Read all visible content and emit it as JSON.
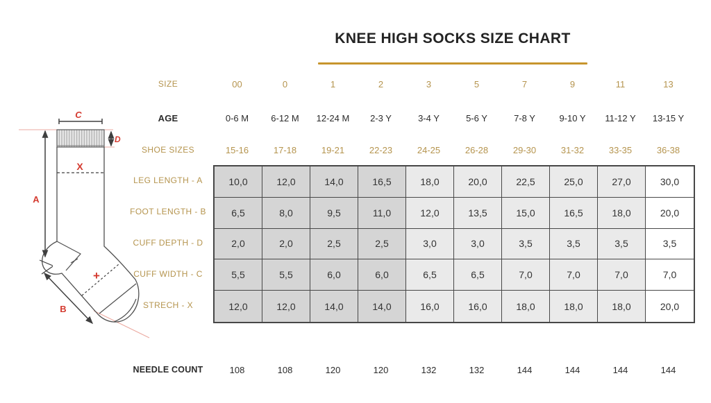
{
  "title": "KNEE HIGH SOCKS SIZE CHART",
  "colors": {
    "gold_text": "#b5944e",
    "title_underline": "#c7952d",
    "annotation_red": "#d43a2f",
    "cell_dark": "#d5d5d5",
    "cell_light": "#eaeaea",
    "table_border": "#474747",
    "guide_pink": "#eba9a0"
  },
  "chart_data": {
    "type": "table",
    "title": "KNEE HIGH SOCKS SIZE CHART",
    "header_rows": [
      {
        "label": "SIZE",
        "values": [
          "00",
          "0",
          "1",
          "2",
          "3",
          "5",
          "7",
          "9",
          "11",
          "13"
        ]
      },
      {
        "label": "AGE",
        "values": [
          "0-6 M",
          "6-12 M",
          "12-24 M",
          "2-3 Y",
          "3-4 Y",
          "5-6 Y",
          "7-8 Y",
          "9-10 Y",
          "11-12 Y",
          "13-15 Y"
        ]
      },
      {
        "label": "SHOE SIZES",
        "values": [
          "15-16",
          "17-18",
          "19-21",
          "22-23",
          "24-25",
          "26-28",
          "29-30",
          "31-32",
          "33-35",
          "36-38"
        ]
      }
    ],
    "body_rows": [
      {
        "label": "LEG LENGTH - A",
        "values": [
          "10,0",
          "12,0",
          "14,0",
          "16,5",
          "18,0",
          "20,0",
          "22,5",
          "25,0",
          "27,0",
          "30,0"
        ]
      },
      {
        "label": "FOOT LENGTH - B",
        "values": [
          "6,5",
          "8,0",
          "9,5",
          "11,0",
          "12,0",
          "13,5",
          "15,0",
          "16,5",
          "18,0",
          "20,0"
        ]
      },
      {
        "label": "CUFF DEPTH - D",
        "values": [
          "2,0",
          "2,0",
          "2,5",
          "2,5",
          "3,0",
          "3,0",
          "3,5",
          "3,5",
          "3,5",
          "3,5"
        ]
      },
      {
        "label": "CUFF WIDTH - C",
        "values": [
          "5,5",
          "5,5",
          "6,0",
          "6,0",
          "6,5",
          "6,5",
          "7,0",
          "7,0",
          "7,0",
          "7,0"
        ]
      },
      {
        "label": "STRECH - X",
        "values": [
          "12,0",
          "12,0",
          "14,0",
          "14,0",
          "16,0",
          "16,0",
          "18,0",
          "18,0",
          "18,0",
          "20,0"
        ]
      }
    ],
    "footer_row": {
      "label": "NEEDLE COUNT",
      "values": [
        "108",
        "108",
        "120",
        "120",
        "132",
        "132",
        "144",
        "144",
        "144",
        "144"
      ]
    },
    "column_shading": {
      "dark_cols": [
        0,
        1,
        2,
        3
      ],
      "light_cols": [
        4,
        5,
        6,
        7,
        8
      ],
      "white_cols": [
        9
      ]
    }
  },
  "sock_diagram": {
    "labels": {
      "a": "A",
      "b": "B",
      "c": "C",
      "d": "D",
      "x": "X",
      "plus": "+"
    }
  }
}
